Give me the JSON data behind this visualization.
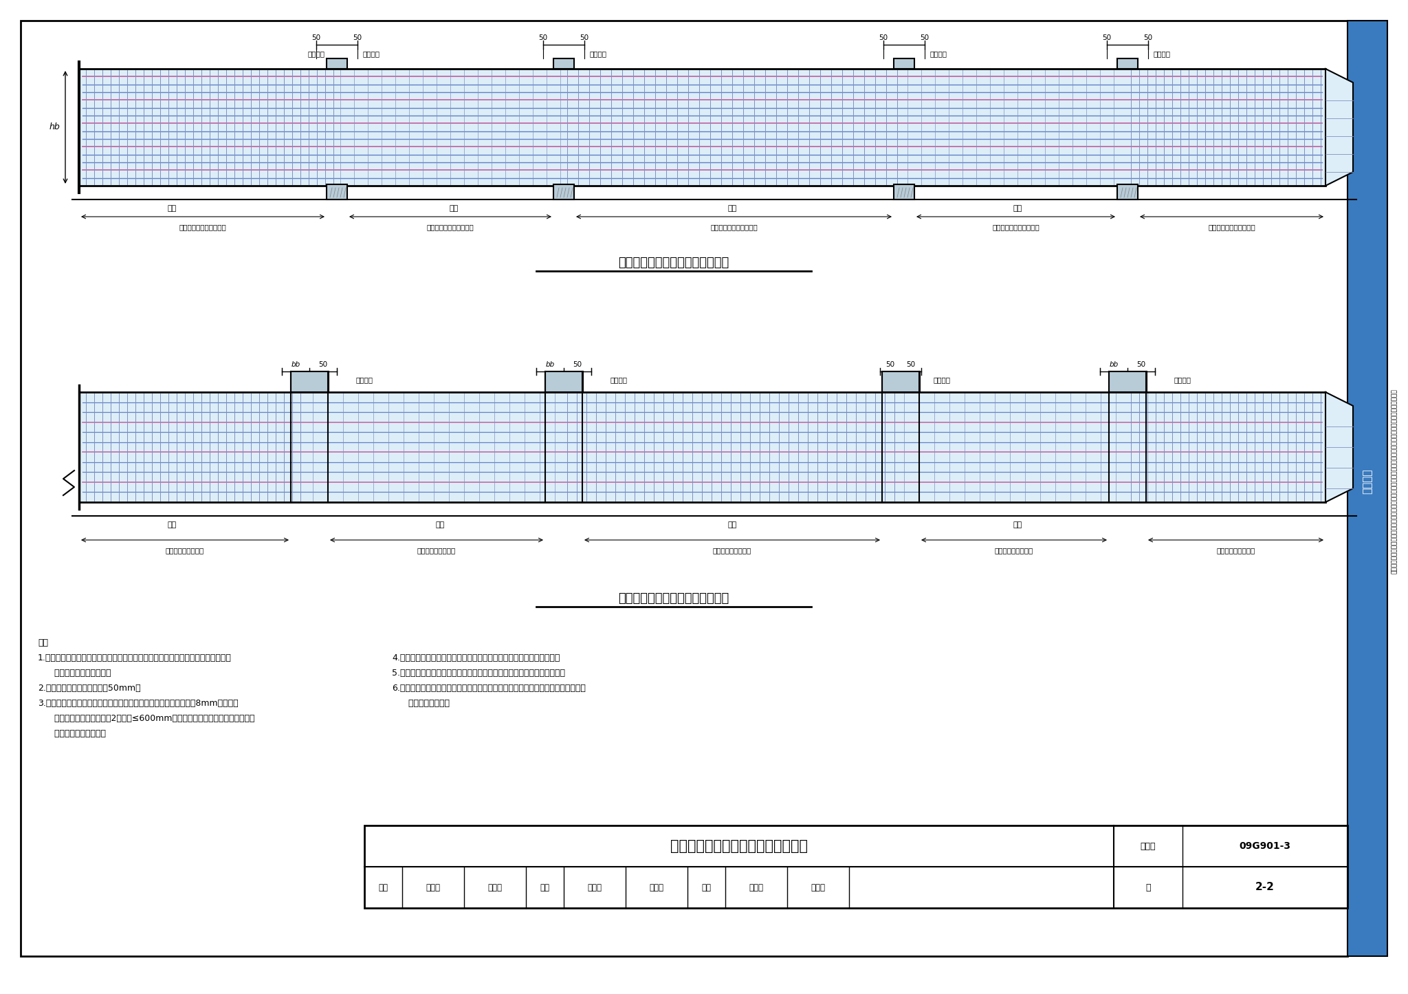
{
  "title": "基础梁箍筋、拉筋沿梁纵向排布构造",
  "diagram1_title": "基础主梁箍筋、拉筋排布构造详图",
  "diagram2_title": "基础次梁箍筋、拉筋排布构造详图",
  "figure_number": "09G901-3",
  "page": "2-2",
  "bg_color": "#ffffff",
  "beam_fill_color": "#ddeef8",
  "rebar_color": "#6080b8",
  "stirrup_color": "#8090c0",
  "side_tab_color": "#3a7bbf",
  "notes_left": [
    "注：",
    "1.在不同配置要求的箍筋区域分界处应设置一道分界箍筋，分界箍筋应按相邻区域配",
    "   置要求较高的箍筋配置。",
    "2.梁第一遍箍筋距支座边缘为50mm。",
    "3.梁两侧腰筋用拉筋联系，拉筋应同时钩住腰筋和箍筋。拉筋直径为8mm。拉筋间",
    "   距为非加密区箍筋间距的2倍，且≤600mm。当梁侧向拉筋多于一排时，相邻上",
    "   下排拉筋应错开设置。"
  ],
  "notes_right": [
    "4.弧形梁箍筋加密区范围按梁宽中心线展开计算，箍筋间距按凸面量度。",
    "5.节点两侧主梁宽不同时，节点区域的箍筋应按梁宽较大的一侧配置箍筋。",
    "6.具体工程中，梁第一种箍筋的设置范围、纵向钢筋搭接区箍筋的配置等均应以设计",
    "   图中的要求为准。"
  ],
  "title_block_main": "基础梁箍筋、拉筋沿梁纵向排布构造",
  "atlas_number": "09G901-3",
  "page_number": "2-2",
  "review_row": "审核  黄志刚  黄志刚  校对  张工文  张之之  设计  王怀元  王怀元  页  2-2"
}
